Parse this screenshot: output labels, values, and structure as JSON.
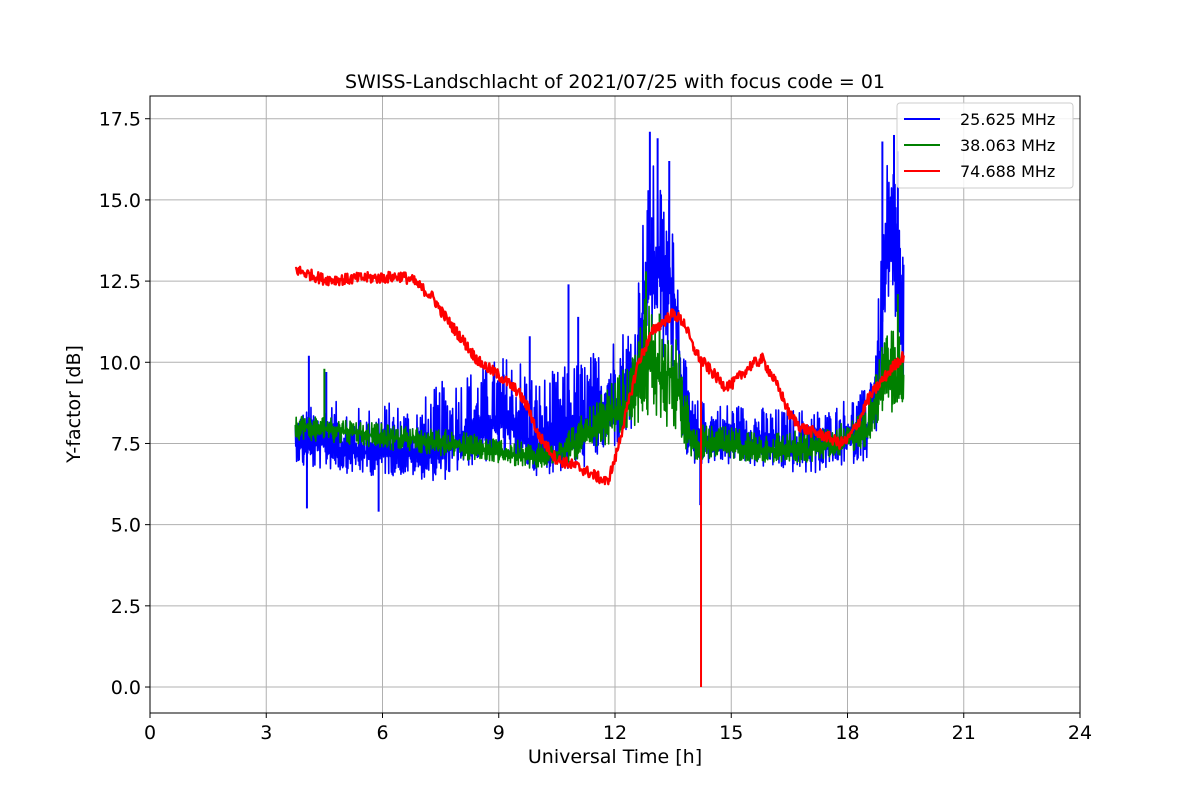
{
  "chart_data": {
    "type": "line",
    "title": "SWISS-Landschlacht of 2021/07/25 with focus code = 01",
    "xlabel": "Universal Time [h]",
    "ylabel": "Y-factor [dB]",
    "xlim": [
      0,
      24
    ],
    "ylim": [
      -0.8,
      18.2
    ],
    "xticks": [
      0,
      3,
      6,
      9,
      12,
      15,
      18,
      21,
      24
    ],
    "xtick_labels": [
      "0",
      "3",
      "6",
      "9",
      "12",
      "15",
      "18",
      "21",
      "24"
    ],
    "yticks": [
      0,
      2.5,
      5,
      7.5,
      10,
      12.5,
      15,
      17.5
    ],
    "ytick_labels": [
      "0.0",
      "2.5",
      "5.0",
      "7.5",
      "10.0",
      "12.5",
      "15.0",
      "17.5"
    ],
    "grid": true,
    "legend_position": "top-right",
    "series": [
      {
        "name": "25.625 MHz",
        "color": "#0000ff",
        "x": [
          3.75,
          4.0,
          4.5,
          5.0,
          5.5,
          6.0,
          6.5,
          7.0,
          7.5,
          8.0,
          8.5,
          9.0,
          9.5,
          10.0,
          10.5,
          11.0,
          11.5,
          12.0,
          12.5,
          12.75,
          13.0,
          13.25,
          13.5,
          13.75,
          14.0,
          14.5,
          15.0,
          15.5,
          16.0,
          16.5,
          17.0,
          17.5,
          18.0,
          18.5,
          18.8,
          19.0,
          19.2,
          19.45
        ],
        "y_mean": [
          7.5,
          7.4,
          7.5,
          7.3,
          7.2,
          7.3,
          7.2,
          7.1,
          7.2,
          7.6,
          8.0,
          8.2,
          7.8,
          7.3,
          7.5,
          7.8,
          8.3,
          8.8,
          9.2,
          12.0,
          13.0,
          12.5,
          12.5,
          9.0,
          7.7,
          7.6,
          7.6,
          7.6,
          7.5,
          7.4,
          7.4,
          7.4,
          7.7,
          7.9,
          9.5,
          13.0,
          13.5,
          11.0
        ],
        "y_min": [
          7.0,
          6.6,
          6.7,
          6.6,
          6.5,
          6.5,
          6.5,
          6.4,
          6.3,
          6.6,
          6.9,
          6.9,
          6.8,
          6.5,
          6.6,
          6.6,
          6.9,
          7.3,
          7.8,
          9.5,
          11.0,
          10.0,
          9.5,
          7.3,
          6.8,
          6.9,
          6.8,
          6.8,
          6.7,
          6.6,
          6.5,
          6.7,
          6.8,
          7.0,
          8.0,
          11.0,
          11.5,
          8.5
        ],
        "y_max": [
          8.6,
          8.6,
          8.8,
          8.8,
          8.6,
          8.8,
          8.8,
          8.9,
          9.4,
          9.8,
          9.9,
          10.2,
          10.4,
          9.6,
          9.8,
          10.1,
          10.4,
          11.0,
          11.5,
          15.0,
          16.2,
          15.3,
          15.3,
          10.5,
          8.9,
          8.8,
          8.8,
          8.7,
          8.6,
          8.6,
          8.6,
          8.6,
          9.0,
          9.2,
          12.0,
          16.0,
          16.5,
          14.0
        ],
        "spikes": [
          [
            4.1,
            10.2
          ],
          [
            4.05,
            5.5
          ],
          [
            4.55,
            9.7
          ],
          [
            5.9,
            5.4
          ],
          [
            9.8,
            10.8
          ],
          [
            10.8,
            12.4
          ],
          [
            11.05,
            11.4
          ],
          [
            12.9,
            17.1
          ],
          [
            13.1,
            16.9
          ],
          [
            13.4,
            16.2
          ],
          [
            14.2,
            5.6
          ],
          [
            18.9,
            16.8
          ],
          [
            19.2,
            17.0
          ],
          [
            19.3,
            16.5
          ]
        ]
      },
      {
        "name": "38.063 MHz",
        "color": "#008000",
        "x": [
          3.75,
          4.0,
          5.0,
          6.0,
          7.0,
          8.0,
          9.0,
          10.0,
          10.5,
          11.0,
          11.5,
          12.0,
          12.5,
          12.75,
          13.0,
          13.25,
          13.5,
          13.75,
          14.0,
          15.0,
          16.0,
          17.0,
          18.0,
          18.5,
          18.8,
          19.0,
          19.2,
          19.45
        ],
        "y_mean": [
          8.0,
          8.0,
          7.9,
          7.7,
          7.6,
          7.4,
          7.2,
          7.0,
          7.2,
          7.5,
          7.9,
          8.4,
          8.9,
          10.0,
          9.8,
          9.6,
          9.8,
          8.5,
          7.5,
          7.4,
          7.3,
          7.3,
          7.6,
          7.9,
          9.0,
          9.5,
          9.6,
          9.3
        ],
        "y_min": [
          7.6,
          7.6,
          7.5,
          7.3,
          7.2,
          7.0,
          6.9,
          6.7,
          6.8,
          7.0,
          7.2,
          7.6,
          7.9,
          8.3,
          8.2,
          8.0,
          8.0,
          7.4,
          7.0,
          7.0,
          6.9,
          6.9,
          7.2,
          7.4,
          8.2,
          8.4,
          8.5,
          8.3
        ],
        "y_max": [
          8.5,
          8.4,
          8.3,
          8.1,
          8.0,
          7.9,
          7.7,
          7.5,
          7.8,
          8.2,
          8.8,
          9.5,
          10.2,
          12.2,
          11.5,
          11.0,
          11.2,
          9.8,
          8.1,
          8.0,
          7.9,
          7.9,
          8.2,
          8.6,
          10.2,
          10.8,
          11.5,
          10.3
        ],
        "spikes": [
          [
            4.5,
            9.8
          ],
          [
            12.8,
            12.8
          ],
          [
            13.15,
            11.5
          ],
          [
            19.3,
            12.1
          ]
        ]
      },
      {
        "name": "74.688 MHz",
        "color": "#ff0000",
        "x": [
          3.75,
          4.0,
          4.5,
          5.0,
          5.5,
          6.0,
          6.5,
          6.8,
          7.0,
          7.3,
          7.5,
          7.8,
          8.0,
          8.3,
          8.5,
          9.0,
          9.5,
          9.8,
          10.0,
          10.5,
          11.0,
          11.5,
          11.8,
          12.0,
          12.3,
          12.6,
          13.0,
          13.5,
          13.8,
          14.0,
          14.2,
          14.5,
          14.8,
          15.0,
          15.5,
          15.8,
          16.0,
          16.3,
          16.5,
          16.8,
          17.0,
          17.5,
          17.8,
          18.0,
          18.3,
          18.5,
          18.8,
          19.0,
          19.2,
          19.45
        ],
        "y": [
          12.85,
          12.75,
          12.55,
          12.55,
          12.6,
          12.6,
          12.65,
          12.5,
          12.3,
          12.0,
          11.6,
          11.1,
          10.8,
          10.3,
          10.0,
          9.6,
          9.1,
          8.5,
          7.8,
          7.0,
          6.8,
          6.5,
          6.3,
          7.0,
          8.5,
          10.0,
          11.0,
          11.5,
          11.2,
          10.5,
          10.1,
          9.7,
          9.3,
          9.3,
          9.9,
          10.1,
          9.7,
          9.0,
          8.4,
          8.0,
          7.9,
          7.7,
          7.5,
          7.6,
          8.2,
          8.8,
          9.3,
          9.6,
          9.9,
          10.2
        ],
        "spikes": [
          [
            14.22,
            0.0
          ]
        ]
      }
    ]
  }
}
